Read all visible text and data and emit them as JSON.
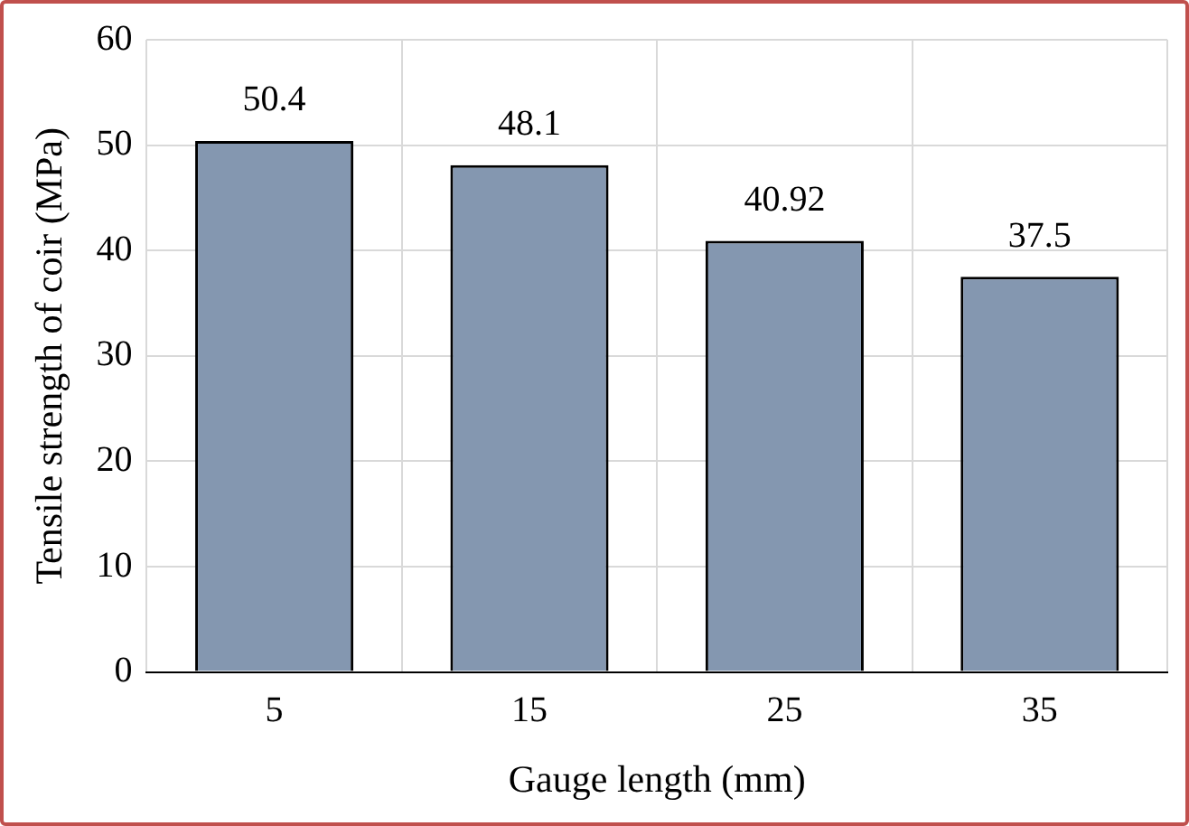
{
  "chart_data": {
    "type": "bar",
    "xlabel": "Gauge length (mm)",
    "ylabel": "Tensile strength of coir (MPa)",
    "categories": [
      "5",
      "15",
      "25",
      "35"
    ],
    "values": [
      50.4,
      48.1,
      40.92,
      37.5
    ],
    "color": "#8497b0",
    "ylim": [
      0,
      60
    ],
    "yticks": [
      0,
      10,
      20,
      30,
      40,
      50,
      60
    ],
    "grid": true,
    "data_labels": true,
    "legend": false
  }
}
